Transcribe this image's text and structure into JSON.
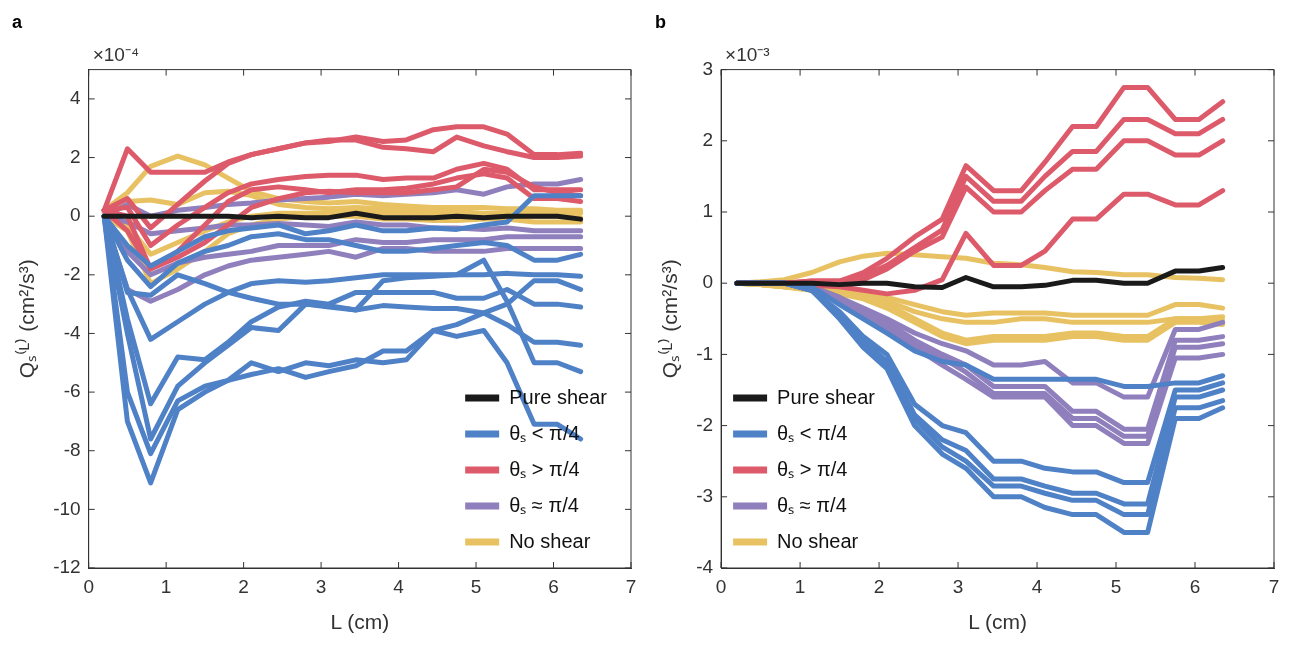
{
  "chart_data": [
    {
      "type": "line",
      "title": "a",
      "xlabel": "L (cm)",
      "ylabel": "Qₛ⁽ᴸ⁾ (cm²/s³)",
      "annotations": [
        "×10⁻⁴"
      ],
      "x": [
        0.2,
        0.5,
        0.8,
        1.15,
        1.5,
        1.8,
        2.1,
        2.45,
        2.8,
        3.1,
        3.45,
        3.8,
        4.1,
        4.45,
        4.75,
        5.1,
        5.4,
        5.75,
        6.05,
        6.35
      ],
      "xlim": [
        0,
        7
      ],
      "xticks": [
        0,
        1,
        2,
        3,
        4,
        5,
        6,
        7
      ],
      "ylim": [
        -12,
        5
      ],
      "yticks": [
        -12,
        -10,
        -8,
        -6,
        -4,
        -2,
        0,
        2,
        4
      ],
      "grid": false,
      "legend": "bottom right",
      "series": [
        {
          "name": "Pure shear",
          "color": "#1a1a1a",
          "values": [
            0,
            0,
            0,
            0,
            0,
            0,
            -0.05,
            0,
            -0.05,
            -0.05,
            0.1,
            -0.05,
            -0.05,
            -0.05,
            0,
            -0.05,
            0,
            0,
            0,
            -0.1
          ]
        },
        {
          "name": "θₛ < π/4",
          "color": "#4f81c7",
          "values": [
            0,
            -2.5,
            -4.2,
            -3.6,
            -3.0,
            -2.6,
            -2.3,
            -2.2,
            -2.25,
            -2.2,
            -2.1,
            -2.0,
            -2.0,
            -2.0,
            -2.0,
            -2.0,
            -1.95,
            -2.0,
            -2.0,
            -2.05
          ]
        },
        {
          "color": "#4f81c7",
          "values": [
            0,
            -2.6,
            -2.7,
            -2.0,
            -2.3,
            -2.6,
            -2.8,
            -3.0,
            -3.0,
            -3.05,
            -3.2,
            -3.05,
            -3.1,
            -3.15,
            -3.15,
            -3.3,
            -3.7,
            -4.3,
            -4.3,
            -4.4
          ]
        },
        {
          "color": "#4f81c7",
          "values": [
            0,
            -3.5,
            -6.4,
            -4.8,
            -4.9,
            -4.3,
            -3.6,
            -3.1,
            -2.9,
            -3.0,
            -2.6,
            -2.6,
            -2.6,
            -2.6,
            -2.8,
            -2.8,
            -2.5,
            -3.0,
            -3.0,
            -3.1
          ]
        },
        {
          "color": "#4f81c7",
          "values": [
            0,
            -4.0,
            -7.6,
            -5.8,
            -5.0,
            -4.4,
            -3.8,
            -3.9,
            -3.0,
            -3.1,
            -3.2,
            -2.2,
            -2.1,
            -2.05,
            -2.0,
            -1.5,
            -2.9,
            -5.0,
            -5.0,
            -5.3
          ]
        },
        {
          "color": "#4f81c7",
          "values": [
            0,
            -7.0,
            -9.1,
            -6.6,
            -6.0,
            -5.6,
            -5.0,
            -5.3,
            -5.0,
            -5.1,
            -4.9,
            -5.0,
            -4.9,
            -3.9,
            -4.1,
            -3.9,
            -5.0,
            -7.1,
            -7.1,
            -7.6
          ]
        },
        {
          "color": "#4f81c7",
          "values": [
            0,
            -6.0,
            -8.1,
            -6.3,
            -5.8,
            -5.6,
            -5.4,
            -5.2,
            -5.5,
            -5.3,
            -5.1,
            -4.6,
            -4.6,
            -3.9,
            -3.7,
            -3.3,
            -3.0,
            -2.2,
            -2.2,
            -2.5
          ]
        },
        {
          "color": "#4f81c7",
          "values": [
            0,
            -1.0,
            -1.7,
            -1.2,
            -0.7,
            -0.5,
            -0.4,
            -0.3,
            -0.6,
            -0.5,
            -0.3,
            -0.5,
            -0.5,
            -0.4,
            -0.45,
            -0.3,
            -0.2,
            0.7,
            0.7,
            0.7
          ]
        },
        {
          "color": "#4f81c7",
          "values": [
            0,
            -1.5,
            -2.4,
            -1.6,
            -1.2,
            -1.0,
            -0.7,
            -0.6,
            -0.8,
            -0.8,
            -1.0,
            -1.2,
            -1.2,
            -1.1,
            -1.0,
            -0.9,
            -1.0,
            -1.5,
            -1.5,
            -1.3
          ]
        },
        {
          "name": "θₛ > π/4",
          "color": "#dd5a6b",
          "values": [
            0.2,
            2.3,
            1.5,
            1.5,
            1.5,
            1.85,
            2.1,
            2.3,
            2.5,
            2.55,
            2.7,
            2.55,
            2.6,
            2.95,
            3.05,
            3.05,
            2.8,
            2.1,
            2.1,
            2.15
          ]
        },
        {
          "color": "#dd5a6b",
          "values": [
            0.2,
            0.6,
            -0.4,
            0.4,
            1.2,
            1.8,
            2.1,
            2.3,
            2.5,
            2.6,
            2.6,
            2.35,
            2.3,
            2.2,
            2.7,
            2.4,
            2.2,
            2.0,
            2.0,
            2.05
          ]
        },
        {
          "color": "#dd5a6b",
          "values": [
            0.2,
            0.3,
            -1.0,
            -0.3,
            0.3,
            0.8,
            1.1,
            1.25,
            1.35,
            1.4,
            1.4,
            1.25,
            1.3,
            1.3,
            1.6,
            1.8,
            1.6,
            0.9,
            0.9,
            0.9
          ]
        },
        {
          "color": "#dd5a6b",
          "values": [
            0.2,
            0,
            -1.8,
            -1.2,
            -0.3,
            0.5,
            0.9,
            1.0,
            0.9,
            0.8,
            0.9,
            0.9,
            0.95,
            1.1,
            1.3,
            1.45,
            1.3,
            0.6,
            0.6,
            0.5
          ]
        },
        {
          "color": "#dd5a6b",
          "values": [
            0.2,
            -0.5,
            -1.8,
            -1.4,
            -0.9,
            -0.3,
            0.3,
            0.6,
            0.8,
            0.85,
            0.8,
            0.8,
            0.8,
            0.9,
            1.0,
            1.6,
            1.5,
            1.0,
            0.8,
            0.7
          ]
        },
        {
          "name": "θₛ ≈ π/4",
          "color": "#8f7fbd",
          "values": [
            0,
            0.4,
            0,
            0.2,
            0.3,
            0.4,
            0.45,
            0.55,
            0.6,
            0.65,
            0.75,
            0.7,
            0.75,
            0.8,
            0.9,
            0.75,
            1.0,
            1.1,
            1.1,
            1.25
          ]
        },
        {
          "color": "#8f7fbd",
          "values": [
            0,
            -0.2,
            -0.6,
            -0.5,
            -0.4,
            -0.3,
            -0.3,
            -0.25,
            -0.3,
            -0.35,
            -0.2,
            -0.3,
            -0.3,
            -0.4,
            -0.4,
            -0.45,
            -0.4,
            -0.5,
            -0.5,
            -0.5
          ]
        },
        {
          "color": "#8f7fbd",
          "values": [
            0,
            -1.2,
            -2.0,
            -1.6,
            -1.4,
            -1.3,
            -1.2,
            -1.0,
            -1.0,
            -1.0,
            -0.8,
            -0.9,
            -0.9,
            -0.8,
            -0.8,
            -0.8,
            -0.7,
            -0.7,
            -0.7,
            -0.7
          ]
        },
        {
          "color": "#8f7fbd",
          "values": [
            0,
            -2.5,
            -2.9,
            -2.5,
            -2.0,
            -1.7,
            -1.5,
            -1.4,
            -1.3,
            -1.2,
            -1.4,
            -1.1,
            -1.1,
            -1.2,
            -1.2,
            -1.2,
            -1.1,
            -1.1,
            -1.1,
            -1.1
          ]
        },
        {
          "name": "No shear",
          "color": "#e8c262",
          "values": [
            0.2,
            0.8,
            1.7,
            2.05,
            1.75,
            1.3,
            0.85,
            0.6,
            0.5,
            0.45,
            0.5,
            0.4,
            0.35,
            0.3,
            0.3,
            0.3,
            0.25,
            0.25,
            0.2,
            0.2
          ]
        },
        {
          "color": "#e8c262",
          "values": [
            0.1,
            0.5,
            0.55,
            0.4,
            0.8,
            0.85,
            0.7,
            0.4,
            0.3,
            0.25,
            0.3,
            0.25,
            0.2,
            0.15,
            0.15,
            0.1,
            0.1,
            0.1,
            0.1,
            0.1
          ]
        },
        {
          "color": "#e8c262",
          "values": [
            0,
            -0.5,
            -2.3,
            -1.8,
            -1.2,
            -0.6,
            -0.3,
            -0.1,
            0,
            0,
            0,
            -0.1,
            -0.1,
            -0.15,
            -0.15,
            -0.1,
            -0.1,
            -0.2,
            -0.2,
            -0.2
          ]
        },
        {
          "color": "#e8c262",
          "values": [
            0,
            -0.3,
            -1.3,
            -0.9,
            -0.5,
            -0.2,
            0,
            0.1,
            0.1,
            0.1,
            0.2,
            0.1,
            0.1,
            0.05,
            0.05,
            0,
            0,
            0,
            0,
            -0.05
          ]
        }
      ]
    },
    {
      "type": "line",
      "title": "b",
      "xlabel": "L (cm)",
      "ylabel": "Qₛ⁽ᴸ⁾ (cm²/s³)",
      "annotations": [
        "×10⁻³"
      ],
      "x": [
        0.2,
        0.5,
        0.8,
        1.15,
        1.5,
        1.8,
        2.1,
        2.45,
        2.8,
        3.1,
        3.45,
        3.8,
        4.1,
        4.45,
        4.75,
        5.1,
        5.4,
        5.75,
        6.05,
        6.35
      ],
      "xlim": [
        0,
        7
      ],
      "xticks": [
        0,
        1,
        2,
        3,
        4,
        5,
        6,
        7
      ],
      "ylim": [
        -4,
        3
      ],
      "yticks": [
        -4,
        -3,
        -2,
        -1,
        0,
        1,
        2,
        3
      ],
      "grid": false,
      "legend": "bottom left",
      "series": [
        {
          "name": "Pure shear",
          "color": "#1a1a1a",
          "values": [
            0,
            0,
            0,
            0,
            -0.02,
            0,
            0,
            -0.05,
            -0.06,
            0.08,
            -0.05,
            -0.05,
            -0.03,
            0.04,
            0.04,
            0,
            0,
            0.17,
            0.17,
            0.22
          ]
        },
        {
          "name": "θₛ < π/4",
          "color": "#4f81c7",
          "values": [
            0,
            0,
            0,
            -0.05,
            -0.3,
            -0.5,
            -0.7,
            -0.95,
            -1.1,
            -1.15,
            -1.35,
            -1.35,
            -1.35,
            -1.35,
            -1.35,
            -1.45,
            -1.45,
            -1.4,
            -1.4,
            -1.3
          ]
        },
        {
          "color": "#4f81c7",
          "values": [
            0,
            0,
            0,
            -0.1,
            -0.4,
            -0.75,
            -1.0,
            -1.7,
            -2.0,
            -2.1,
            -2.5,
            -2.5,
            -2.6,
            -2.65,
            -2.65,
            -2.8,
            -2.8,
            -1.5,
            -1.5,
            -1.4
          ]
        },
        {
          "color": "#4f81c7",
          "values": [
            0,
            0,
            0,
            -0.1,
            -0.45,
            -0.8,
            -1.1,
            -1.85,
            -2.2,
            -2.35,
            -2.75,
            -2.75,
            -2.85,
            -2.95,
            -2.95,
            -3.1,
            -3.1,
            -1.6,
            -1.6,
            -1.5
          ]
        },
        {
          "color": "#4f81c7",
          "values": [
            0,
            0,
            0,
            -0.1,
            -0.45,
            -0.85,
            -1.15,
            -1.9,
            -2.3,
            -2.5,
            -2.85,
            -2.85,
            -2.95,
            -3.05,
            -3.05,
            -3.25,
            -3.25,
            -1.75,
            -1.75,
            -1.65
          ]
        },
        {
          "color": "#4f81c7",
          "values": [
            0,
            0,
            0,
            -0.1,
            -0.5,
            -0.9,
            -1.2,
            -2.0,
            -2.4,
            -2.6,
            -3.0,
            -3.0,
            -3.15,
            -3.25,
            -3.25,
            -3.5,
            -3.5,
            -1.9,
            -1.9,
            -1.75
          ]
        },
        {
          "name": "θₛ > π/4",
          "color": "#dd5a6b",
          "values": [
            0,
            0,
            0,
            0.03,
            0.03,
            0.15,
            0.35,
            0.65,
            0.9,
            1.65,
            1.3,
            1.3,
            1.7,
            2.2,
            2.2,
            2.75,
            2.75,
            2.3,
            2.3,
            2.55
          ]
        },
        {
          "color": "#dd5a6b",
          "values": [
            0,
            0,
            0,
            0.03,
            0.03,
            0.1,
            0.25,
            0.5,
            0.75,
            1.5,
            1.15,
            1.15,
            1.5,
            1.85,
            1.85,
            2.3,
            2.3,
            2.1,
            2.1,
            2.3
          ]
        },
        {
          "color": "#dd5a6b",
          "values": [
            0,
            0,
            0,
            0.02,
            0.02,
            0.05,
            0.2,
            0.45,
            0.65,
            1.35,
            1.0,
            1.0,
            1.3,
            1.6,
            1.6,
            2.0,
            2.0,
            1.8,
            1.8,
            2.0
          ]
        },
        {
          "color": "#dd5a6b",
          "values": [
            0,
            0,
            0,
            -0.03,
            -0.05,
            -0.1,
            -0.15,
            -0.1,
            0.05,
            0.7,
            0.25,
            0.25,
            0.45,
            0.9,
            0.9,
            1.25,
            1.25,
            1.1,
            1.1,
            1.3
          ]
        },
        {
          "name": "θₛ ≈ π/4",
          "color": "#8f7fbd",
          "values": [
            0,
            0,
            0,
            -0.05,
            -0.2,
            -0.35,
            -0.5,
            -0.7,
            -0.85,
            -0.95,
            -1.15,
            -1.15,
            -1.1,
            -1.4,
            -1.4,
            -1.6,
            -1.6,
            -0.65,
            -0.65,
            -0.55
          ]
        },
        {
          "color": "#8f7fbd",
          "values": [
            0,
            0,
            0,
            -0.05,
            -0.2,
            -0.4,
            -0.55,
            -0.8,
            -1.0,
            -1.15,
            -1.45,
            -1.45,
            -1.45,
            -1.8,
            -1.8,
            -2.05,
            -2.05,
            -0.8,
            -0.8,
            -0.75
          ]
        },
        {
          "color": "#8f7fbd",
          "values": [
            0,
            0,
            0,
            -0.05,
            -0.22,
            -0.42,
            -0.6,
            -0.85,
            -1.05,
            -1.25,
            -1.55,
            -1.55,
            -1.55,
            -1.9,
            -1.9,
            -2.15,
            -2.15,
            -0.9,
            -0.9,
            -0.85
          ]
        },
        {
          "color": "#8f7fbd",
          "values": [
            0,
            0,
            0,
            -0.05,
            -0.25,
            -0.45,
            -0.65,
            -0.9,
            -1.15,
            -1.35,
            -1.6,
            -1.6,
            -1.6,
            -2.0,
            -2.0,
            -2.25,
            -2.25,
            -1.05,
            -1.05,
            -1.0
          ]
        },
        {
          "name": "No shear",
          "color": "#e8c262",
          "values": [
            0,
            0.02,
            0.05,
            0.15,
            0.3,
            0.38,
            0.42,
            0.4,
            0.37,
            0.35,
            0.28,
            0.26,
            0.22,
            0.16,
            0.15,
            0.12,
            0.12,
            0.08,
            0.07,
            0.05
          ]
        },
        {
          "color": "#e8c262",
          "values": [
            0,
            -0.02,
            -0.05,
            -0.08,
            -0.1,
            -0.15,
            -0.2,
            -0.3,
            -0.4,
            -0.45,
            -0.42,
            -0.42,
            -0.42,
            -0.45,
            -0.45,
            -0.45,
            -0.45,
            -0.3,
            -0.3,
            -0.35
          ]
        },
        {
          "color": "#e8c262",
          "values": [
            0,
            -0.02,
            -0.05,
            -0.08,
            -0.1,
            -0.15,
            -0.25,
            -0.4,
            -0.5,
            -0.55,
            -0.55,
            -0.5,
            -0.5,
            -0.55,
            -0.55,
            -0.55,
            -0.55,
            -0.5,
            -0.5,
            -0.47
          ]
        },
        {
          "color": "#e8c262",
          "values": [
            0,
            -0.02,
            -0.05,
            -0.1,
            -0.15,
            -0.2,
            -0.3,
            -0.5,
            -0.7,
            -0.8,
            -0.75,
            -0.75,
            -0.75,
            -0.7,
            -0.7,
            -0.75,
            -0.75,
            -0.5,
            -0.5,
            -0.52
          ]
        },
        {
          "color": "#e8c262",
          "values": [
            0,
            -0.02,
            -0.05,
            -0.1,
            -0.15,
            -0.22,
            -0.35,
            -0.55,
            -0.75,
            -0.85,
            -0.8,
            -0.8,
            -0.8,
            -0.75,
            -0.75,
            -0.8,
            -0.8,
            -0.55,
            -0.55,
            -0.58
          ]
        }
      ]
    }
  ]
}
